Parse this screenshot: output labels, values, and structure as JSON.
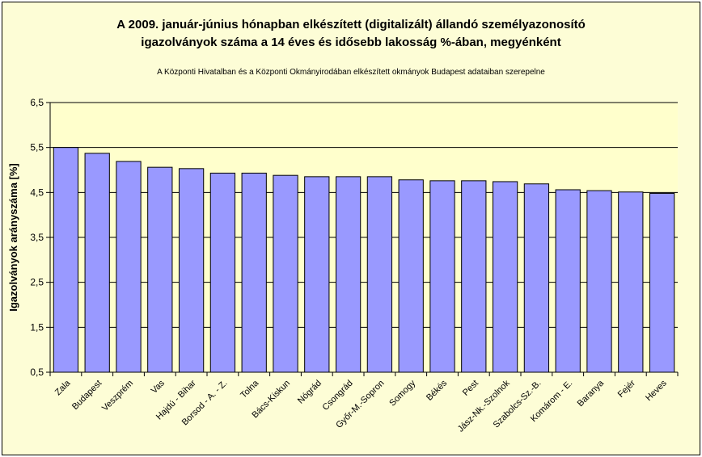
{
  "chart_data": {
    "type": "bar",
    "title_line1": "A 2009. január-június hónapban elkészített (digitalizált) állandó személyazonosító",
    "title_line2": "igazolványok száma a 14 éves és idősebb lakosság %-ában, megyénként",
    "subtitle": "A  Központi Hivatalban és a Központi Okmányirodában elkészített  okmányok Budapest adataiban szerepelne",
    "ylabel": "Igazolványok arányszáma [%]",
    "xlabel": "",
    "ylim": [
      0.5,
      6.5
    ],
    "yticks": [
      "0,5",
      "1,5",
      "2,5",
      "3,5",
      "4,5",
      "5,5",
      "6,5"
    ],
    "categories": [
      "Zala",
      "Budapest",
      "Veszprém",
      "Vas",
      "Hajdú - Bihar",
      "Borsod - A. - Z.",
      "Tolna",
      "Bács-Kiskun",
      "Nógrád",
      "Csongrád",
      "Győr-M.-Sopron",
      "Somogy",
      "Békés",
      "Pest",
      "Jász-Nk.-Szolnok",
      "Szabolcs-Sz.-B.",
      "Komárom - E.",
      "Baranya",
      "Fejér",
      "Heves"
    ],
    "values": [
      5.5,
      5.37,
      5.19,
      5.06,
      5.03,
      4.93,
      4.93,
      4.88,
      4.85,
      4.85,
      4.85,
      4.78,
      4.76,
      4.76,
      4.74,
      4.69,
      4.56,
      4.54,
      4.51,
      4.48
    ],
    "grid": true,
    "legend": "none",
    "colors": {
      "bar": "#9999ff",
      "plot_bg": "#ffffcc",
      "chart_bg": "#fdfdd6"
    }
  }
}
